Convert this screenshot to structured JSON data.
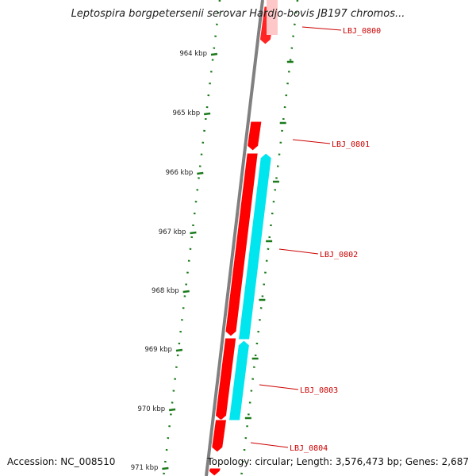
{
  "title": "Leptospira borgpetersenii serovar Hardjo-bovis JB197 chromos...",
  "footer": {
    "accession": "Accession: NC_008510",
    "summary": "Topology: circular; Length: 3,576,473 bp; Genes: 2,687"
  },
  "colors": {
    "backbone": "#808080",
    "forward_gene": "#ff0000",
    "reverse_gene": "#00e5ee",
    "tick": "#1a7a1a",
    "label_line": "#cc0000",
    "label_text": "#cc0000"
  },
  "scale_ticks": [
    {
      "label": "964 kbp"
    },
    {
      "label": "965 kbp"
    },
    {
      "label": "966 kbp"
    },
    {
      "label": "967 kbp"
    },
    {
      "label": "968 kbp"
    },
    {
      "label": "969 kbp"
    },
    {
      "label": "970 kbp"
    },
    {
      "label": "971 kbp"
    }
  ],
  "genes": [
    {
      "name": "LBJ_0800",
      "strand": "forward"
    },
    {
      "name": "LBJ_0801",
      "strand": "forward"
    },
    {
      "name": "LBJ_0802",
      "strand": "reverse"
    },
    {
      "name": "LBJ_0803",
      "strand": "forward"
    },
    {
      "name": "LBJ_0804",
      "strand": "forward"
    }
  ]
}
